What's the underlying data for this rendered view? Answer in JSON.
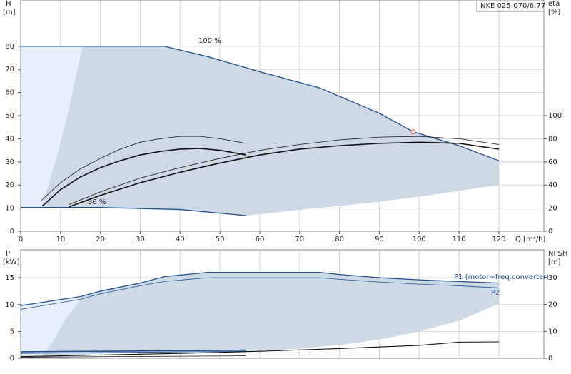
{
  "chart_data": [
    {
      "type": "line",
      "title": "NKE 025-070/6.77",
      "y_label": [
        "H",
        "[m]"
      ],
      "y2_label": [
        "eta",
        "[%]"
      ],
      "x_label": "Q [m³/h]",
      "xlim": [
        0,
        131.3
      ],
      "xticks": [
        0,
        10,
        20,
        30,
        40,
        50,
        60,
        70,
        80,
        90,
        100,
        110,
        120
      ],
      "ylim": [
        0,
        100
      ],
      "yticks": [
        0,
        10,
        20,
        30,
        40,
        50,
        60,
        70,
        80
      ],
      "y2lim": [
        0,
        200
      ],
      "y2ticks": [
        0,
        20,
        40,
        60,
        80,
        100
      ],
      "grid": true,
      "annotations": [
        "100 %",
        "36 %"
      ],
      "areas": [
        {
          "color": "#cdd9e5",
          "x": [
            5,
            7,
            9,
            11,
            13,
            15.5,
            36,
            47,
            60,
            75,
            90,
            98.5,
            110,
            120,
            120,
            110,
            100,
            90,
            80,
            70,
            56.5,
            40,
            20,
            5
          ],
          "values": [
            10.3,
            20,
            32,
            45,
            60,
            80,
            80,
            75.5,
            69,
            62,
            51,
            43,
            37,
            30.5,
            20,
            17.5,
            15,
            12.8,
            11,
            9.3,
            6.8,
            9.4,
            10.3,
            10.3
          ]
        },
        {
          "color": "#e6f0fa",
          "x": [
            0,
            5,
            7,
            9,
            11,
            13,
            15.5,
            0
          ],
          "values": [
            10.3,
            10.3,
            20,
            32,
            45,
            60,
            80,
            80
          ]
        }
      ],
      "series": [
        {
          "color": "#1f4e8c",
          "width": 1.3,
          "axis": "y",
          "x": [
            0,
            15.5,
            36,
            47,
            60,
            75,
            90,
            98.5,
            110,
            120
          ],
          "values": [
            80,
            80,
            80,
            75.5,
            69,
            62,
            51,
            43,
            37,
            30.5
          ]
        },
        {
          "color": "#1f4e8c",
          "width": 1.3,
          "axis": "y",
          "x": [
            0,
            20,
            40,
            56.5
          ],
          "values": [
            10.3,
            10.3,
            9.4,
            6.8
          ]
        },
        {
          "color": "#111111",
          "width": 0.8,
          "axis": "y2",
          "x": [
            12,
            20,
            30,
            40,
            50,
            60,
            70,
            80,
            90,
            100,
            110,
            120
          ],
          "values": [
            23,
            34,
            46,
            55,
            63,
            70,
            75,
            79,
            81.4,
            82,
            80,
            75
          ]
        },
        {
          "color": "#111111",
          "width": 1.6,
          "axis": "y2",
          "x": [
            12,
            20,
            30,
            40,
            50,
            60,
            70,
            80,
            90,
            100,
            110,
            120
          ],
          "values": [
            21,
            31,
            42,
            51,
            59,
            66,
            71,
            74,
            76,
            77,
            76,
            71
          ]
        },
        {
          "color": "#111111",
          "width": 0.8,
          "axis": "y2",
          "x": [
            5,
            10,
            15,
            20,
            25,
            30,
            35,
            40,
            45,
            50,
            56.5
          ],
          "values": [
            26,
            42,
            54,
            63,
            71,
            77,
            80,
            82,
            82,
            80,
            76
          ]
        },
        {
          "color": "#111111",
          "width": 1.6,
          "axis": "y2",
          "x": [
            5.5,
            10,
            15,
            20,
            25,
            30,
            35,
            40,
            45,
            50,
            56.5
          ],
          "values": [
            22,
            36,
            47,
            55,
            61,
            66,
            69,
            71,
            71.6,
            70,
            66
          ]
        }
      ],
      "duty_point": {
        "x": 98.5,
        "value": 43,
        "color": "#e05050"
      }
    },
    {
      "type": "line",
      "y_label": [
        "P",
        "[kW]"
      ],
      "y2_label": [
        "NPSH",
        "[m]"
      ],
      "xlim": [
        0,
        131.3
      ],
      "ylim": [
        0,
        20.2
      ],
      "yticks": [
        0,
        5,
        10,
        15
      ],
      "y2lim": [
        0,
        40.3
      ],
      "y2ticks": [
        0,
        10,
        20,
        30
      ],
      "grid": true,
      "annotations": [
        "P1 (motor+freq.converter)",
        "P2"
      ],
      "areas": [
        {
          "color": "#cdd9e5",
          "x": [
            5,
            8,
            11,
            15.5,
            20,
            30,
            36,
            47,
            60,
            75,
            80,
            90,
            100,
            110,
            120,
            120,
            110,
            100,
            90,
            80,
            70,
            56.5,
            40,
            20,
            5
          ],
          "values": [
            0,
            3,
            7,
            11.5,
            12.5,
            14,
            15.2,
            16,
            16,
            16,
            15.6,
            15,
            14.6,
            14.3,
            14,
            10.2,
            7,
            5,
            3.5,
            2.5,
            1.8,
            1.3,
            1.1,
            0.9,
            0
          ]
        },
        {
          "color": "#e6f0fa",
          "x": [
            0,
            5,
            8,
            11,
            15.5,
            0
          ],
          "values": [
            0,
            0,
            3,
            7,
            11.5,
            9.8
          ]
        }
      ],
      "series": [
        {
          "color": "#1f4e8c",
          "width": 1.3,
          "axis": "y",
          "x": [
            0,
            15,
            20,
            30,
            36,
            47,
            60,
            75,
            80,
            90,
            100,
            110,
            120
          ],
          "values": [
            9.8,
            11.5,
            12.5,
            14,
            15.2,
            16,
            16,
            16,
            15.6,
            15,
            14.6,
            14.3,
            14
          ]
        },
        {
          "color": "#1f4e8c",
          "width": 0.8,
          "axis": "y",
          "x": [
            0,
            15,
            20,
            30,
            36,
            47,
            60,
            75,
            80,
            90,
            100,
            110,
            120
          ],
          "values": [
            9.1,
            11,
            12,
            13.5,
            14.3,
            15,
            15,
            15,
            14.7,
            14.2,
            13.8,
            13.5,
            13.1
          ]
        },
        {
          "color": "#1f4e8c",
          "width": 1.6,
          "axis": "y",
          "x": [
            0,
            56.5
          ],
          "values": [
            1.2,
            1.5
          ]
        },
        {
          "color": "#1f4e8c",
          "width": 0.8,
          "axis": "y",
          "x": [
            0,
            56.5
          ],
          "values": [
            0.9,
            1.3
          ]
        },
        {
          "color": "#111111",
          "width": 1.1,
          "axis": "y2",
          "x": [
            0,
            20,
            40,
            60,
            80,
            100,
            110,
            120
          ],
          "values": [
            0.6,
            1.2,
            1.8,
            2.6,
            3.6,
            4.8,
            6,
            6.1
          ]
        },
        {
          "color": "#111111",
          "width": 0.8,
          "axis": "y2",
          "x": [
            0,
            56.5
          ],
          "values": [
            0.4,
            0.9
          ]
        }
      ]
    }
  ]
}
